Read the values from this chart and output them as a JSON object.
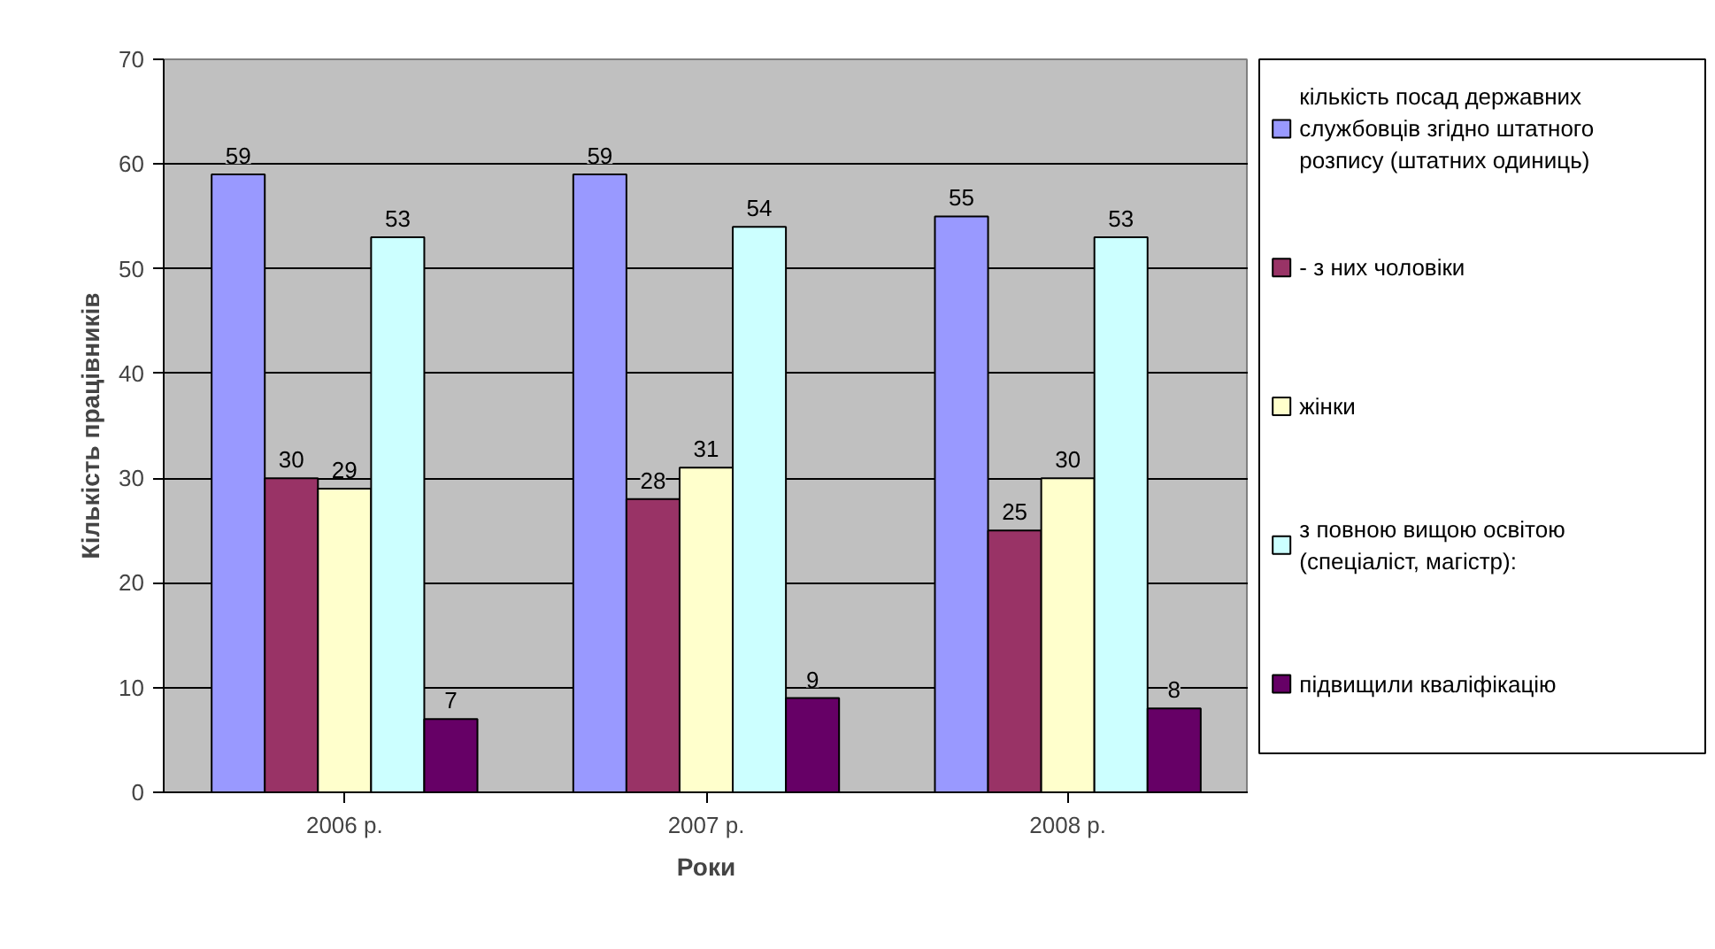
{
  "chart_data": {
    "type": "bar",
    "xlabel": "Роки",
    "ylabel": "Кількість працівників",
    "categories": [
      "2006 р.",
      "2007 р.",
      "2008 р."
    ],
    "series": [
      {
        "name": "кількість посад державних службовців згідно штатного розпису (штатних одиниць)",
        "color": "#9999ff",
        "values": [
          59,
          59,
          55
        ]
      },
      {
        "name": " - з них чоловіки",
        "color": "#993366",
        "values": [
          30,
          28,
          25
        ]
      },
      {
        "name": "жінки",
        "color": "#ffffcc",
        "values": [
          29,
          31,
          30
        ]
      },
      {
        "name": "з повною вищою освітою (спеціаліст, магістр):",
        "color": "#ccffff",
        "values": [
          53,
          54,
          53
        ]
      },
      {
        "name": "підвищили кваліфікацію",
        "color": "#660066",
        "values": [
          7,
          9,
          8
        ]
      }
    ],
    "ylim": [
      0,
      70
    ],
    "yticks": [
      0,
      10,
      20,
      30,
      40,
      50,
      60,
      70
    ],
    "grid": "y",
    "legend": "right",
    "data_labels": true
  }
}
